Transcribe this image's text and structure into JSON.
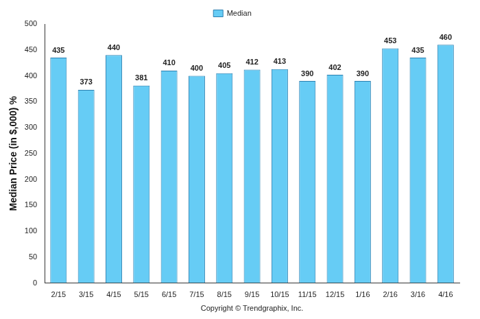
{
  "chart_data": {
    "type": "bar",
    "y_label": "Median Price (in $,000) %",
    "x_label": "Copyright © Trendgraphix, Inc.",
    "categories": [
      "2/15",
      "3/15",
      "4/15",
      "5/15",
      "6/15",
      "7/15",
      "8/15",
      "9/15",
      "10/15",
      "11/15",
      "12/15",
      "1/16",
      "2/16",
      "3/16",
      "4/16"
    ],
    "series": [
      {
        "name": "Median",
        "color": "#66ccf5",
        "values": [
          435,
          373,
          440,
          381,
          410,
          400,
          405,
          412,
          413,
          390,
          402,
          390,
          453,
          435,
          460
        ]
      }
    ],
    "ylim": [
      0,
      500
    ],
    "yticks": [
      0,
      50,
      100,
      150,
      200,
      250,
      300,
      350,
      400,
      450,
      500
    ],
    "grid": false,
    "legend": "top",
    "data_labels": true
  }
}
